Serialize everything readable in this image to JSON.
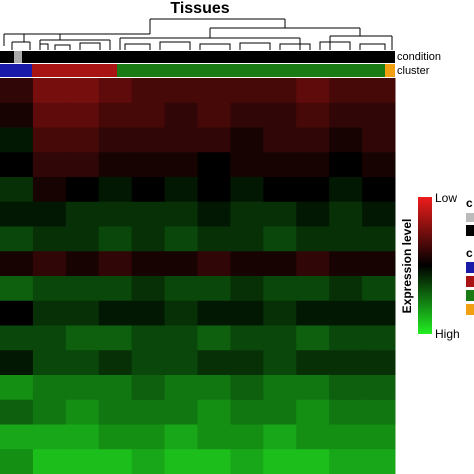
{
  "chart_data": {
    "type": "heatmap",
    "title": "Tissues",
    "annotation_labels": [
      "condition",
      "cluster"
    ],
    "colorbar_title": "Expression level",
    "colorbar_labels": [
      "Low",
      "High"
    ],
    "legend_labels": [
      "c",
      "c"
    ],
    "zlim": [
      -1,
      1
    ],
    "colors": [
      "#ee1c1c",
      "#000000",
      "#22ee22"
    ],
    "values": [
      [
        -0.2,
        -0.5,
        -0.5,
        -0.4,
        -0.3,
        -0.3,
        -0.3,
        -0.3,
        -0.3,
        -0.4,
        -0.3,
        -0.3
      ],
      [
        -0.1,
        -0.4,
        -0.4,
        -0.3,
        -0.3,
        -0.2,
        -0.3,
        -0.2,
        -0.2,
        -0.3,
        -0.2,
        -0.2
      ],
      [
        0.1,
        -0.3,
        -0.3,
        -0.2,
        -0.2,
        -0.2,
        -0.2,
        -0.1,
        -0.2,
        -0.2,
        -0.1,
        -0.2
      ],
      [
        0,
        -0.2,
        -0.2,
        -0.1,
        -0.1,
        -0.1,
        0,
        -0.1,
        -0.1,
        -0.1,
        0,
        -0.1
      ],
      [
        0.2,
        -0.1,
        0,
        0.1,
        0,
        0.1,
        0,
        0.1,
        0,
        0,
        0.1,
        0
      ],
      [
        0.1,
        0.1,
        0.2,
        0.2,
        0.2,
        0.2,
        0.1,
        0.2,
        0.2,
        0.1,
        0.2,
        0.1
      ],
      [
        0.3,
        0.2,
        0.2,
        0.3,
        0.2,
        0.3,
        0.2,
        0.2,
        0.3,
        0.2,
        0.2,
        0.2
      ],
      [
        -0.1,
        -0.2,
        -0.1,
        -0.2,
        -0.1,
        -0.1,
        -0.2,
        -0.1,
        -0.1,
        -0.2,
        -0.1,
        -0.1
      ],
      [
        0.4,
        0.3,
        0.3,
        0.3,
        0.2,
        0.3,
        0.3,
        0.2,
        0.3,
        0.3,
        0.2,
        0.3
      ],
      [
        0,
        0.2,
        0.2,
        0.1,
        0.1,
        0.2,
        0.1,
        0.1,
        0.2,
        0.1,
        0.1,
        0.1
      ],
      [
        0.3,
        0.3,
        0.4,
        0.4,
        0.3,
        0.3,
        0.4,
        0.3,
        0.3,
        0.4,
        0.3,
        0.3
      ],
      [
        0.1,
        0.3,
        0.3,
        0.2,
        0.3,
        0.3,
        0.2,
        0.2,
        0.3,
        0.2,
        0.2,
        0.2
      ],
      [
        0.6,
        0.5,
        0.5,
        0.5,
        0.4,
        0.5,
        0.5,
        0.4,
        0.5,
        0.5,
        0.4,
        0.4
      ],
      [
        0.4,
        0.5,
        0.6,
        0.5,
        0.5,
        0.5,
        0.6,
        0.5,
        0.5,
        0.6,
        0.5,
        0.5
      ],
      [
        0.7,
        0.7,
        0.7,
        0.6,
        0.6,
        0.7,
        0.6,
        0.6,
        0.7,
        0.6,
        0.6,
        0.6
      ],
      [
        0.6,
        0.8,
        0.8,
        0.8,
        0.7,
        0.8,
        0.8,
        0.7,
        0.8,
        0.8,
        0.7,
        0.7
      ]
    ]
  }
}
